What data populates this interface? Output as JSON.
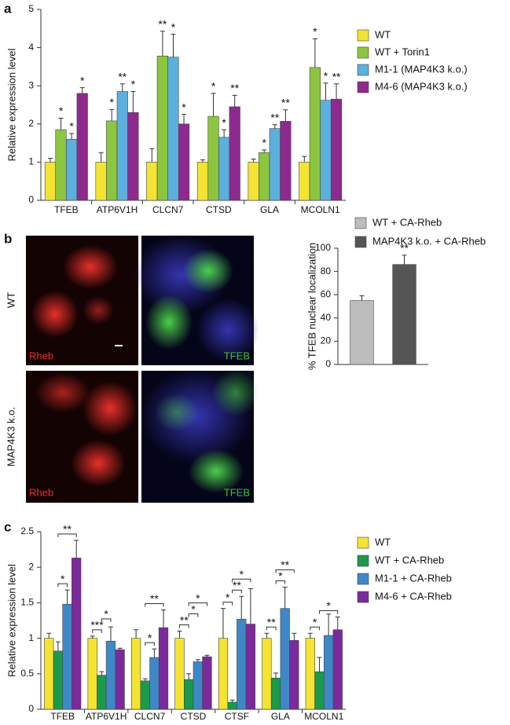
{
  "chart_data": [
    {
      "type": "bar",
      "panel": "a",
      "y_label": "Relative expression level",
      "categories": [
        "TFEB",
        "ATP6V1H",
        "CLCN7",
        "CTSD",
        "GLA",
        "MCOLN1"
      ],
      "ylim": [
        0,
        5
      ],
      "yticks": [
        0,
        1,
        2,
        3,
        4,
        5
      ],
      "series": [
        {
          "name": "WT",
          "color": "#f4e431",
          "values": [
            1.0,
            1.0,
            1.0,
            1.0,
            1.0,
            1.0
          ],
          "errors": [
            0.1,
            0.25,
            0.35,
            0.06,
            0.08,
            0.15
          ],
          "significance": [
            null,
            null,
            null,
            null,
            null,
            null
          ]
        },
        {
          "name": "WT + Torin1",
          "color": "#8cc63f",
          "values": [
            1.85,
            2.08,
            3.78,
            2.2,
            1.25,
            3.48
          ],
          "errors": [
            0.3,
            0.3,
            0.65,
            0.6,
            0.07,
            0.75
          ],
          "significance": [
            "*",
            "*",
            "**",
            "*",
            "*",
            "*"
          ]
        },
        {
          "name": "M1-1 (MAP4K3 k.o.)",
          "color": "#5bb0de",
          "values": [
            1.6,
            2.85,
            3.75,
            1.65,
            1.88,
            2.62
          ],
          "errors": [
            0.15,
            0.2,
            0.6,
            0.2,
            0.1,
            0.45
          ],
          "significance": [
            "*",
            "**",
            "*",
            "*",
            "**",
            "*"
          ]
        },
        {
          "name": "M4-6 (MAP4K3 k.o.)",
          "color": "#8e2a8f",
          "values": [
            2.8,
            2.3,
            2.0,
            2.45,
            2.07,
            2.65
          ],
          "errors": [
            0.15,
            0.55,
            0.25,
            0.3,
            0.3,
            0.4
          ],
          "significance": [
            "*",
            "*",
            "*",
            "**",
            "**",
            "**"
          ]
        }
      ]
    },
    {
      "type": "bar",
      "panel": "b",
      "y_label": "% TFEB nuclear localization",
      "image_row_labels": [
        "WT",
        "MAP4K3 k.o."
      ],
      "image_channels": [
        "Rheb",
        "TFEB"
      ],
      "categories": [
        null
      ],
      "ylim": [
        0,
        100
      ],
      "yticks": [
        0,
        20,
        40,
        60,
        80,
        100
      ],
      "series": [
        {
          "name": "WT + CA-Rheb",
          "color": "#bdbdbd",
          "values": [
            55
          ],
          "errors": [
            4
          ],
          "significance": [
            null
          ]
        },
        {
          "name": "MAP4K3 k.o. + CA-Rheb",
          "color": "#555555",
          "values": [
            86
          ],
          "errors": [
            8
          ],
          "significance": [
            "**"
          ]
        }
      ]
    },
    {
      "type": "bar",
      "panel": "c",
      "y_label": "Relative expression level",
      "categories": [
        "TFEB",
        "ATP6V1H",
        "CLCN7",
        "CTSD",
        "CTSF",
        "GLA",
        "MCOLN1"
      ],
      "ylim": [
        0,
        2.5
      ],
      "yticks": [
        0,
        0.5,
        1,
        1.5,
        2,
        2.5
      ],
      "series": [
        {
          "name": "WT",
          "color": "#f4e431",
          "values": [
            1.0,
            1.0,
            1.0,
            1.0,
            1.0,
            1.0,
            1.0
          ],
          "errors": [
            0.07,
            0.03,
            0.12,
            0.1,
            0.42,
            0.07,
            0.07
          ],
          "brackets_to_wt_ca_rheb": [
            null,
            "***",
            null,
            "**",
            "*",
            "**",
            "*"
          ]
        },
        {
          "name": "WT + CA-Rheb",
          "color": "#1a9a4a",
          "values": [
            0.82,
            0.48,
            0.4,
            0.42,
            0.1,
            0.44,
            0.53
          ],
          "errors": [
            0.13,
            0.05,
            0.03,
            0.08,
            0.03,
            0.07,
            0.2
          ]
        },
        {
          "name": "M1-1 + CA-Rheb",
          "color": "#3f88c8",
          "values": [
            1.48,
            0.96,
            0.73,
            0.67,
            1.27,
            1.42,
            1.04
          ],
          "errors": [
            0.2,
            0.2,
            0.12,
            0.03,
            0.32,
            0.3,
            0.3
          ],
          "brackets_to_wt_ca_rheb": [
            "*",
            "*",
            "*",
            "*",
            "**",
            "*",
            null
          ]
        },
        {
          "name": "M4-6 + CA-Rheb",
          "color": "#7b2a9b",
          "values": [
            2.13,
            0.84,
            1.15,
            0.74,
            1.2,
            0.97,
            1.12
          ],
          "errors": [
            0.25,
            0.02,
            0.25,
            0.02,
            0.5,
            0.1,
            0.18
          ],
          "brackets_to_wt_ca_rheb": [
            "**",
            null,
            "**",
            "*",
            "*",
            "**",
            "*"
          ]
        }
      ]
    }
  ]
}
